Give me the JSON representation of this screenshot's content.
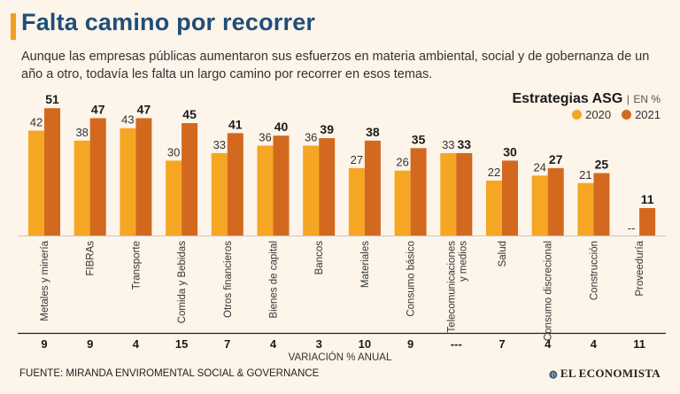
{
  "header": {
    "title": "Falta camino por recorrer",
    "subtitle": "Aunque las empresas públicas aumentaron sus esfuerzos en materia ambiental, social y de gobernanza de un año a otro, todavía les falta un largo camino por recorrer en esos temas."
  },
  "legend": {
    "title": "Estrategias ASG",
    "unit_sep": "|",
    "unit": "EN %",
    "items": [
      {
        "label": "2020",
        "color": "#f5a623"
      },
      {
        "label": "2021",
        "color": "#d2691e"
      }
    ]
  },
  "chart_data": {
    "type": "bar",
    "title": "Estrategias ASG",
    "ylabel": "EN %",
    "ylim": [
      0,
      55
    ],
    "categories": [
      "Metales y minería",
      "FIBRAs",
      "Transporte",
      "Comida y Bebidas",
      "Otros financieros",
      "Bienes de capital",
      "Bancos",
      "Materiales",
      "Consumo básico",
      "Telecomunicaciones y medios",
      "Salud",
      "Consumo discrecional",
      "Construcción",
      "Proveeduría"
    ],
    "series": [
      {
        "name": "2020",
        "values": [
          42,
          38,
          43,
          30,
          33,
          36,
          36,
          27,
          26,
          33,
          22,
          24,
          21,
          null
        ],
        "labels": [
          "42",
          "38",
          "43",
          "30",
          "33",
          "36",
          "36",
          "27",
          "26",
          "33",
          "22",
          "24",
          "21",
          "--"
        ]
      },
      {
        "name": "2021",
        "values": [
          51,
          47,
          47,
          45,
          41,
          40,
          39,
          38,
          35,
          33,
          30,
          27,
          25,
          11
        ],
        "labels": [
          "51",
          "47",
          "47",
          "45",
          "41",
          "40",
          "39",
          "38",
          "35",
          "33",
          "30",
          "27",
          "25",
          "11"
        ]
      }
    ],
    "variation_label": "VARIACIÓN % ANUAL",
    "variation": [
      "9",
      "9",
      "4",
      "15",
      "7",
      "4",
      "3",
      "10",
      "9",
      "---",
      "7",
      "4",
      "4",
      "11"
    ]
  },
  "footer": {
    "source": "FUENTE: MIRANDA ENVIROMENTAL SOCIAL & GOVERNANCE",
    "brand": "EL ECONOMISTA"
  }
}
